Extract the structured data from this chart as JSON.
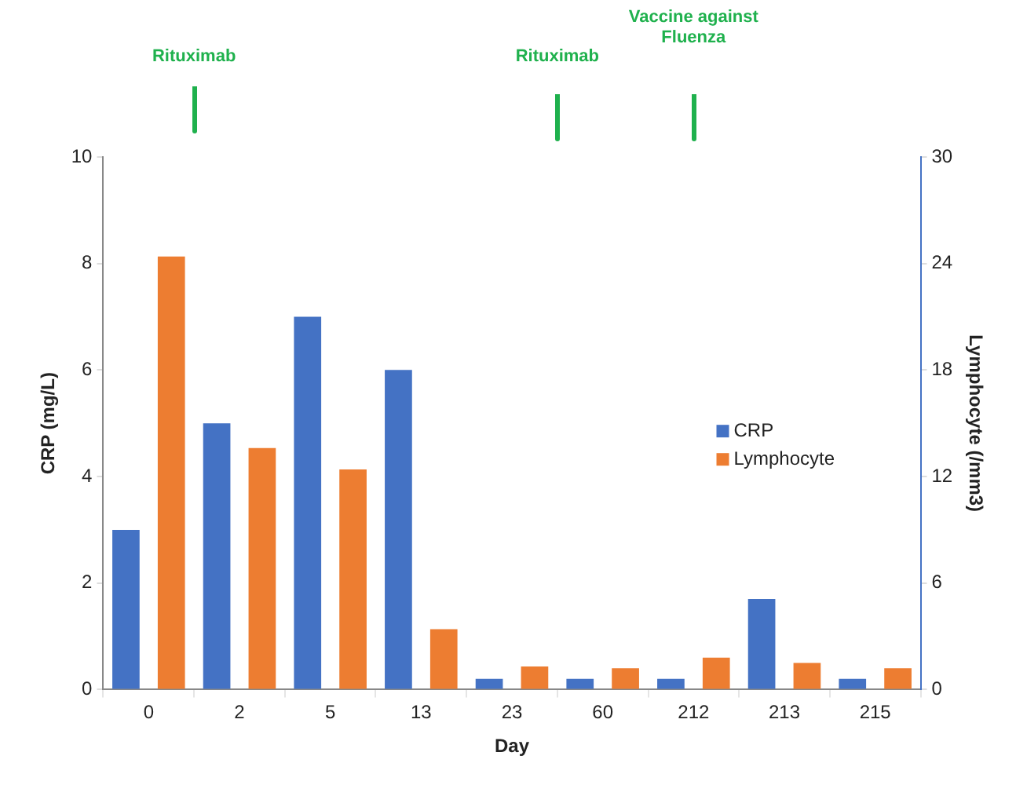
{
  "chart_data": {
    "type": "bar",
    "xlabel": "Day",
    "ylabel": "CRP (mg/L)",
    "y2label": "Lymphocyte (/mm3)",
    "categories": [
      "0",
      "2",
      "5",
      "13",
      "23",
      "60",
      "212",
      "213",
      "215"
    ],
    "series": [
      {
        "name": "CRP",
        "color": "#4472c4",
        "values": [
          3,
          5,
          7,
          6,
          0.2,
          0.2,
          0.2,
          1.7,
          0.2
        ]
      },
      {
        "name": "Lymphocyte",
        "color": "#ed7d31",
        "axis": "y2",
        "values": [
          24.4,
          13.6,
          12.4,
          3.4,
          1.3,
          1.2,
          1.8,
          1.5,
          1.2
        ]
      }
    ],
    "ylim": [
      0,
      10
    ],
    "yticks": [
      0,
      2,
      4,
      6,
      8,
      10
    ],
    "y2lim": [
      0,
      30
    ],
    "y2ticks": [
      0,
      6,
      12,
      18,
      24,
      30
    ],
    "grid": false,
    "legend": "right",
    "annotations": [
      "Rituximab",
      "Rituximab",
      "Vaccine against Fluenza"
    ]
  }
}
